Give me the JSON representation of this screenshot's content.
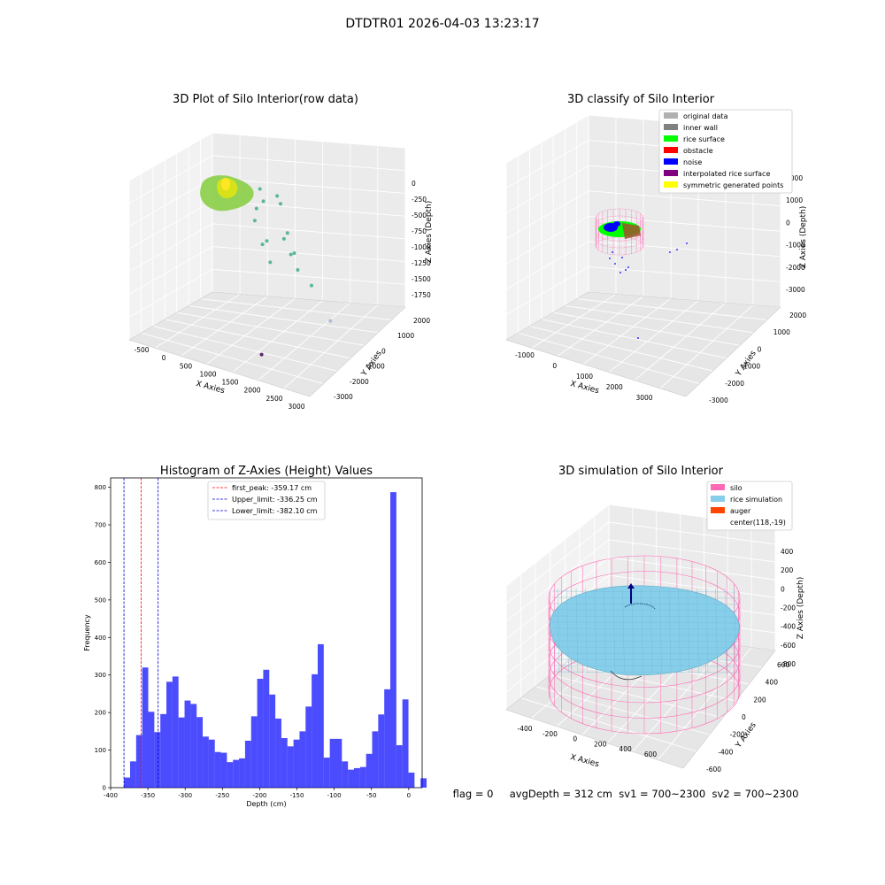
{
  "figure_title": "DTDTR01 2026-04-03 13:23:17",
  "status_line": "flag = 0     avgDepth = 312 cm  sv1 = 700~2300  sv2 = 700~2300",
  "colors": {
    "original": "#b0b0b0",
    "inner_wall": "#808080",
    "rice_surface": "#00ff00",
    "obstacle": "#ff0000",
    "noise": "#0000ff",
    "interpolated": "#800080",
    "symmetric": "#ffff00",
    "histogram": "#0000ff",
    "first_peak": "#ff0000",
    "limit": "#0000cd",
    "silo": "#ff69b4",
    "rice_sim": "#87ceeb",
    "auger": "#ff4500"
  },
  "chart_data": [
    {
      "type": "scatter",
      "title": "3D Plot of Silo Interior(row data)",
      "xlabel": "X Axies",
      "ylabel": "Y Axies",
      "zlabel": "Z Axies (Depth)",
      "x_ticks": [
        "-500",
        "0",
        "500",
        "1000",
        "1500",
        "2000",
        "2500",
        "3000"
      ],
      "y_ticks": [
        "-3000",
        "-2000",
        "-1000",
        "0",
        "1000",
        "2000"
      ],
      "z_ticks": [
        "0",
        "-250",
        "-500",
        "-750",
        "-1000",
        "-1250",
        "-1500",
        "-1750"
      ],
      "xlim": [
        -500,
        3000
      ],
      "ylim": [
        -3000,
        2000
      ],
      "zlim": [
        -1750,
        0
      ],
      "points": [
        {
          "x": 1100,
          "y": -200,
          "z": -400
        },
        {
          "x": 1200,
          "y": -300,
          "z": -500
        },
        {
          "x": 1000,
          "y": -100,
          "z": -650
        },
        {
          "x": 950,
          "y": -50,
          "z": -800
        },
        {
          "x": 1300,
          "y": -400,
          "z": -900
        },
        {
          "x": 1150,
          "y": -200,
          "z": -1000
        },
        {
          "x": 1400,
          "y": -500,
          "z": -1100
        },
        {
          "x": 1600,
          "y": -700,
          "z": -300
        },
        {
          "x": 1700,
          "y": -800,
          "z": -350
        },
        {
          "x": 1800,
          "y": -900,
          "z": -700
        },
        {
          "x": 1900,
          "y": -1000,
          "z": -600
        },
        {
          "x": 2000,
          "y": -1100,
          "z": -800
        },
        {
          "x": 2100,
          "y": -1200,
          "z": -750
        },
        {
          "x": 2200,
          "y": -1300,
          "z": -900
        },
        {
          "x": 2500,
          "y": -1400,
          "z": -1000
        },
        {
          "x": 2900,
          "y": -1500,
          "z": -1300
        },
        {
          "x": 2000,
          "y": -2800,
          "z": -1600
        }
      ]
    },
    {
      "type": "scatter",
      "title": "3D classify of Silo Interior",
      "xlabel": "X Axies",
      "ylabel": "Y Axies",
      "zlabel": "Z Axies (Depth)",
      "x_ticks": [
        "-1000",
        "0",
        "1000",
        "2000",
        "3000"
      ],
      "y_ticks": [
        "-3000",
        "-2000",
        "-1000",
        "0",
        "1000",
        "2000"
      ],
      "z_ticks": [
        "2000",
        "1000",
        "0",
        "-1000",
        "-2000",
        "-3000"
      ],
      "xlim": [
        -1000,
        3000
      ],
      "ylim": [
        -3000,
        2000
      ],
      "zlim": [
        -3000,
        2000
      ],
      "legend": [
        {
          "label": "original data",
          "color": "#b0b0b0"
        },
        {
          "label": "inner wall",
          "color": "#808080"
        },
        {
          "label": "rice surface",
          "color": "#00ff00"
        },
        {
          "label": "obstacle",
          "color": "#ff0000"
        },
        {
          "label": "noise",
          "color": "#0000ff"
        },
        {
          "label": "interpolated rice surface",
          "color": "#800080"
        },
        {
          "label": "symmetric generated points",
          "color": "#ffff00"
        }
      ],
      "legend_position": "upper-right"
    },
    {
      "type": "bar",
      "title": "Histogram of Z-Axies (Height) Values",
      "xlabel": "Depth (cm)",
      "ylabel": "Frequency",
      "xlim": [
        -400,
        18
      ],
      "ylim": [
        0,
        825
      ],
      "x_ticks": [
        -400,
        -350,
        -300,
        -250,
        -200,
        -150,
        -100,
        -50,
        0
      ],
      "y_ticks": [
        0,
        100,
        200,
        300,
        400,
        500,
        600,
        700,
        800
      ],
      "bin_start": -382,
      "bin_width": 8.12,
      "values": [
        27,
        70,
        140,
        320,
        202,
        148,
        196,
        282,
        296,
        187,
        232,
        223,
        188,
        136,
        128,
        95,
        93,
        68,
        74,
        78,
        125,
        190,
        290,
        314,
        248,
        184,
        132,
        110,
        128,
        150,
        216,
        302,
        382,
        80,
        130,
        130,
        70,
        48,
        52,
        55,
        90,
        150,
        195,
        262,
        787,
        113,
        235,
        40,
        0,
        25
      ],
      "lines": [
        {
          "label": "first_peak: -359.17 cm",
          "x": -359.17,
          "color": "#ff0000"
        },
        {
          "label": "Upper_limit: -336.25 cm",
          "x": -336.25,
          "color": "#0000cd"
        },
        {
          "label": "Lower_limit: -382.10 cm",
          "x": -382.1,
          "color": "#0000cd"
        }
      ],
      "legend_position": "upper-center"
    },
    {
      "type": "surface",
      "title": "3D simulation of Silo Interior",
      "xlabel": "X Axies",
      "ylabel": "Y Axies",
      "zlabel": "Z Axies (Depth)",
      "x_ticks": [
        "-400",
        "-200",
        "0",
        "200",
        "400",
        "600"
      ],
      "y_ticks": [
        "-600",
        "-400",
        "-200",
        "0",
        "200",
        "400",
        "600"
      ],
      "z_ticks": [
        "400",
        "200",
        "0",
        "-200",
        "-400",
        "-600",
        "-800"
      ],
      "legend": [
        {
          "label": "silo",
          "color": "#ff69b4"
        },
        {
          "label": "rice simulation",
          "color": "#87ceeb"
        },
        {
          "label": "auger",
          "color": "#ff4500"
        },
        {
          "label": "center(118,-19)",
          "color": ""
        }
      ],
      "legend_position": "upper-right"
    }
  ]
}
